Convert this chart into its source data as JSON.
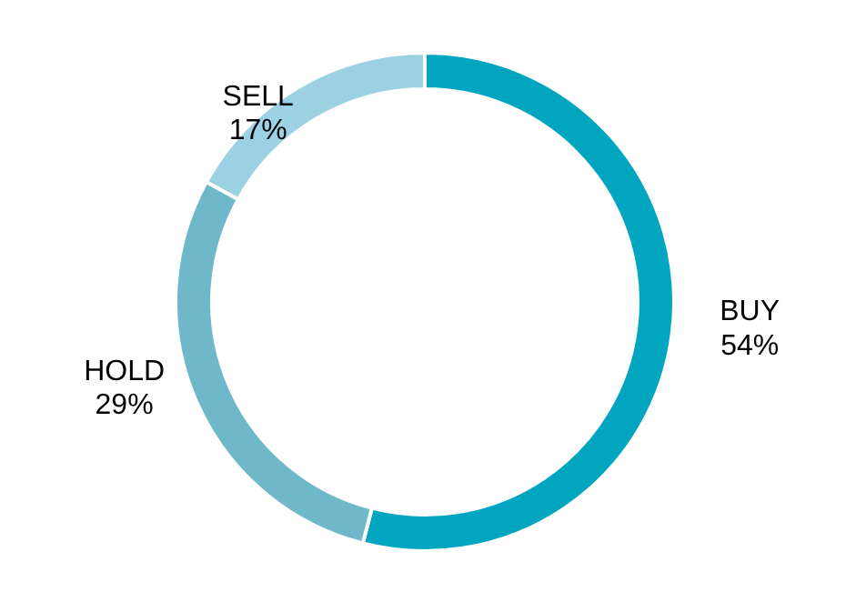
{
  "chart_data": {
    "type": "donut",
    "categories": [
      "BUY",
      "HOLD",
      "SELL"
    ],
    "values": [
      54,
      29,
      17
    ],
    "value_labels": [
      "54%",
      "29%",
      "17%"
    ],
    "colors": [
      "#00a5c0",
      "#6fb8ca",
      "#9bd1e2"
    ]
  }
}
